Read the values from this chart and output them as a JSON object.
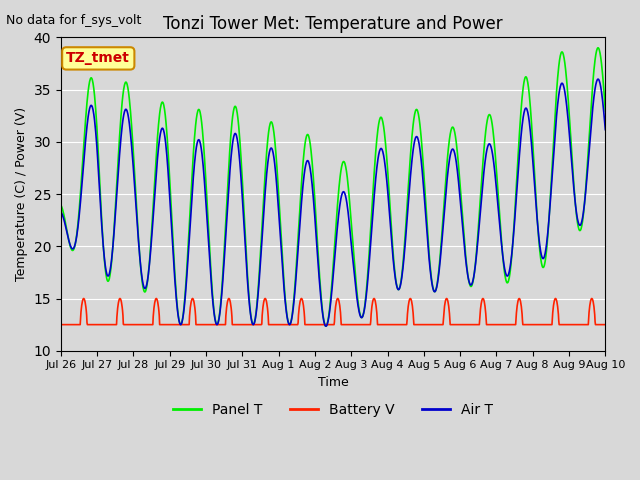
{
  "title": "Tonzi Tower Met: Temperature and Power",
  "top_left_text": "No data for f_sys_volt",
  "ylabel": "Temperature (C) / Power (V)",
  "xlabel": "Time",
  "ylim": [
    10,
    40
  ],
  "yticks": [
    10,
    15,
    20,
    25,
    30,
    35,
    40
  ],
  "plot_bg_color": "#d8d8d8",
  "legend_labels": [
    "Panel T",
    "Battery V",
    "Air T"
  ],
  "legend_colors": [
    "#00ee00",
    "#ff2200",
    "#0000cc"
  ],
  "annotation_box_text": "TZ_tmet",
  "annotation_box_color": "#ffff99",
  "annotation_box_border": "#cc8800",
  "annotation_text_color": "#cc0000",
  "x_tick_labels": [
    "Jul 26",
    "Jul 27",
    "Jul 28",
    "Jul 29",
    "Jul 30",
    "Jul 31",
    "Aug 1",
    "Aug 2",
    "Aug 3",
    "Aug 4",
    "Aug 5",
    "Aug 6",
    "Aug 7",
    "Aug 8",
    "Aug 9",
    "Aug 10"
  ],
  "panel_color": "#00ee00",
  "battery_color": "#ff2200",
  "air_color": "#0000cc",
  "n_days": 15,
  "ppd": 96,
  "day_peaks_panel": [
    25.5,
    38.5,
    35.0,
    33.5,
    33.0,
    33.5,
    31.5,
    30.5,
    27.5,
    33.5,
    33.0,
    31.0,
    33.0,
    37.0,
    39.0,
    39.0
  ],
  "day_peaks_air": [
    24.5,
    35.5,
    32.5,
    31.0,
    30.0,
    31.0,
    29.0,
    28.0,
    24.5,
    30.5,
    30.5,
    29.0,
    30.0,
    34.0,
    36.0,
    36.0
  ],
  "day_troughs_panel": [
    21.0,
    16.5,
    17.0,
    12.5,
    12.5,
    12.5,
    12.5,
    12.5,
    12.0,
    16.0,
    15.5,
    16.0,
    16.5,
    16.5,
    21.5,
    21.5
  ],
  "day_troughs_air": [
    21.0,
    17.0,
    17.5,
    12.5,
    12.5,
    12.5,
    12.5,
    12.5,
    12.0,
    16.0,
    15.5,
    16.0,
    17.0,
    17.5,
    22.0,
    22.0
  ]
}
